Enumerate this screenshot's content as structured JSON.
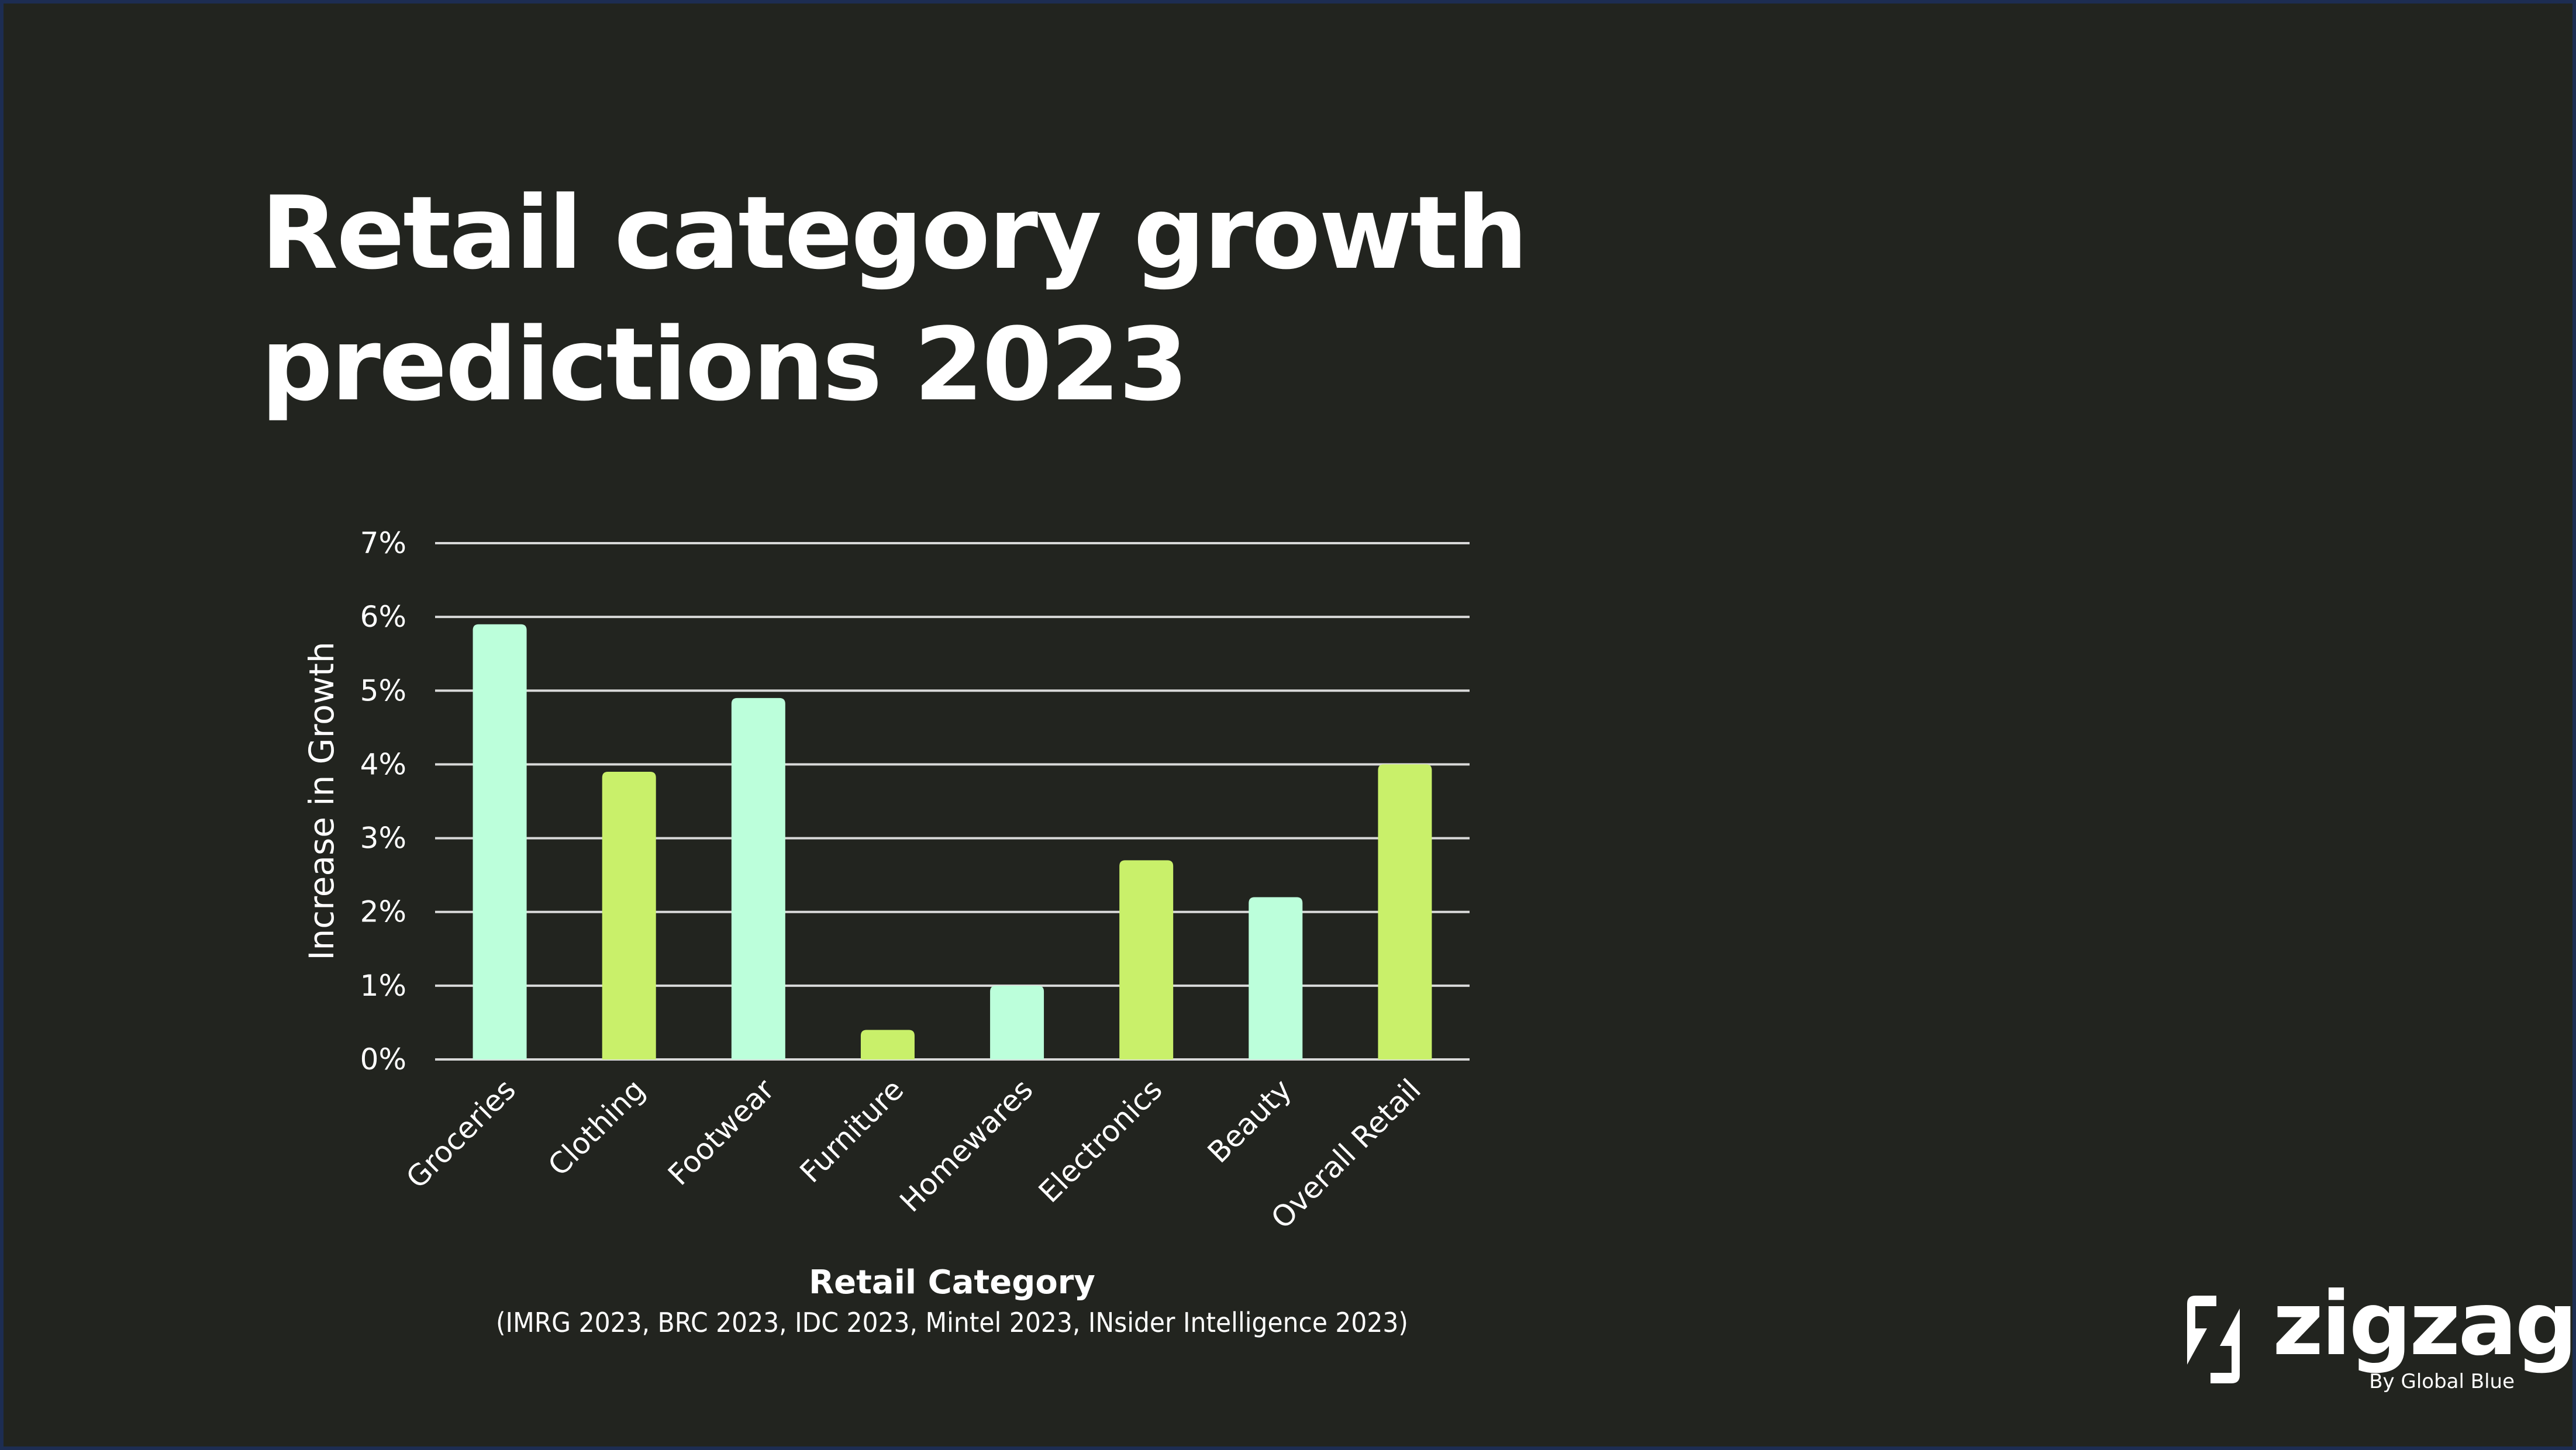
{
  "slide": {
    "title_lines": [
      "Retail category growth",
      "predictions 2023"
    ],
    "brand": {
      "logo_icon": "zigzag-bolt-icon",
      "name": "zigzag",
      "tagline": "By Global Blue"
    },
    "colors": {
      "background": "#22241f",
      "frame": "#1d2d52",
      "text": "#ffffff",
      "grid": "#d9d9d9",
      "bar_mint": "#bcffdb",
      "bar_lime": "#c9f06a"
    }
  },
  "chart_data": {
    "type": "bar",
    "title": "Retail category growth predictions 2023",
    "xlabel": "Retail Category",
    "xlabel_note": "(IMRG 2023, BRC 2023, IDC 2023, Mintel 2023, INsider Intelligence 2023)",
    "ylabel": "Increase in Growth",
    "ylim": [
      0,
      7
    ],
    "yticks": [
      0,
      1,
      2,
      3,
      4,
      5,
      6,
      7
    ],
    "ytick_labels": [
      "0%",
      "1%",
      "2%",
      "3%",
      "4%",
      "5%",
      "6%",
      "7%"
    ],
    "grid": true,
    "legend": "none",
    "categories": [
      "Groceries",
      "Clothing",
      "Footwear",
      "Furniture",
      "Homewares",
      "Electronics",
      "Beauty",
      "Overall Retail"
    ],
    "values": [
      5.9,
      3.9,
      4.9,
      0.4,
      1.0,
      2.7,
      2.2,
      4.0
    ],
    "bar_colors": [
      "#bcffdb",
      "#c9f06a",
      "#bcffdb",
      "#c9f06a",
      "#bcffdb",
      "#c9f06a",
      "#bcffdb",
      "#c9f06a"
    ],
    "unit": "%"
  }
}
